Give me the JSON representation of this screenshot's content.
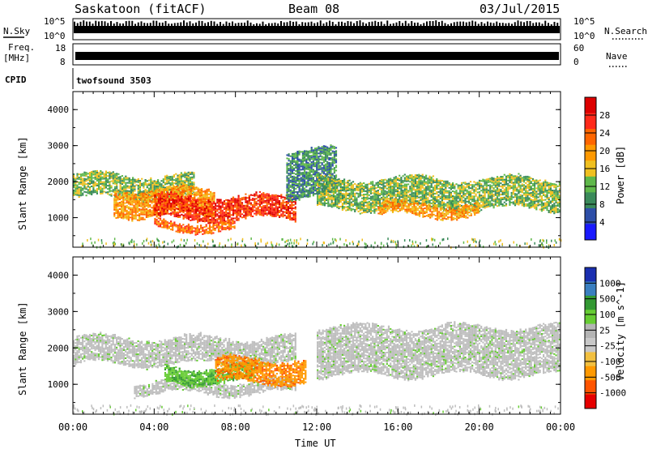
{
  "header": {
    "station": "Saskatoon (fitACF)",
    "beam": "Beam 08",
    "date": "03/Jul/2015"
  },
  "top_panels": {
    "nsky_label": "N.Sky",
    "nsky_ticks": [
      "10^5",
      "10^0"
    ],
    "nsearch_label": "N.Search",
    "freq_label_1": "Freq.",
    "freq_label_2": "[MHz]",
    "freq_ticks": [
      "18",
      "8"
    ],
    "nave_label": "Nave",
    "nave_ticks": [
      "60",
      "0"
    ],
    "cpid_label": "CPID",
    "cpid_value": "twofsound 3503"
  },
  "colors": {
    "power_scale": [
      "#1a1aff",
      "#2e4fa8",
      "#3a8a5a",
      "#5fb84a",
      "#f0c020",
      "#ff9900",
      "#ff6600",
      "#ff2a1a",
      "#dd0000"
    ],
    "velocity_scale": [
      "#e60000",
      "#ff5500",
      "#ff9900",
      "#f2c040",
      "#c8c8c8",
      "#b4b4b4",
      "#66cc33",
      "#339933",
      "#3a7fc0",
      "#1a2fb0"
    ],
    "ground_scatter": "#bdbdbd"
  },
  "chart_data": [
    {
      "type": "heatmap",
      "name": "power",
      "xlabel": "",
      "ylabel": "Slant Range [km]",
      "x_range": [
        "00:00",
        "24:00"
      ],
      "ylim": [
        180,
        4500
      ],
      "y_ticks": [
        "4000",
        "3000",
        "2000",
        "1000"
      ],
      "colorbar": {
        "label": "Power [dB]",
        "ticks": [
          "28",
          "24",
          "20",
          "16",
          "12",
          "8",
          "4"
        ],
        "range": [
          0,
          30
        ]
      },
      "bands": [
        {
          "x_start_h": 0,
          "x_end_h": 6,
          "range_km": [
            1500,
            2200
          ],
          "level_db": 10
        },
        {
          "x_start_h": 2,
          "x_end_h": 7,
          "range_km": [
            1000,
            1800
          ],
          "level_db": 20
        },
        {
          "x_start_h": 4,
          "x_end_h": 11,
          "range_km": [
            900,
            1600
          ],
          "level_db": 28
        },
        {
          "x_start_h": 4,
          "x_end_h": 8,
          "range_km": [
            600,
            900
          ],
          "level_db": 24
        },
        {
          "x_start_h": 10.5,
          "x_end_h": 13,
          "range_km": [
            1500,
            2900
          ],
          "level_db": 8
        },
        {
          "x_start_h": 12,
          "x_end_h": 24,
          "range_km": [
            1200,
            2100
          ],
          "level_db": 12
        },
        {
          "x_start_h": 15,
          "x_end_h": 20,
          "range_km": [
            1000,
            1400
          ],
          "level_db": 20
        }
      ]
    },
    {
      "type": "heatmap",
      "name": "velocity",
      "xlabel": "Time UT",
      "ylabel": "Slant Range [km]",
      "x_range": [
        "00:00",
        "24:00"
      ],
      "x_ticks": [
        "00:00",
        "04:00",
        "08:00",
        "12:00",
        "16:00",
        "20:00",
        "00:00"
      ],
      "ylim": [
        180,
        4500
      ],
      "y_ticks": [
        "4000",
        "3000",
        "2000",
        "1000"
      ],
      "colorbar": {
        "label": "Velocity [m s^-1]",
        "ticks": [
          "1000",
          "500",
          "100",
          "25",
          "-25",
          "-100",
          "-500",
          "-1000"
        ],
        "range": [
          -1000,
          1000
        ]
      },
      "bands": [
        {
          "x_start_h": 0,
          "x_end_h": 11,
          "range_km": [
            1500,
            2300
          ],
          "velocity": 0
        },
        {
          "x_start_h": 3,
          "x_end_h": 11,
          "range_km": [
            700,
            1100
          ],
          "velocity": 0
        },
        {
          "x_start_h": 12,
          "x_end_h": 24,
          "range_km": [
            1200,
            2600
          ],
          "velocity": 0
        },
        {
          "x_start_h": 4.5,
          "x_end_h": 9,
          "range_km": [
            1000,
            1500
          ],
          "velocity": 100
        },
        {
          "x_start_h": 7,
          "x_end_h": 11.5,
          "range_km": [
            1000,
            1700
          ],
          "velocity": -200
        }
      ]
    }
  ]
}
